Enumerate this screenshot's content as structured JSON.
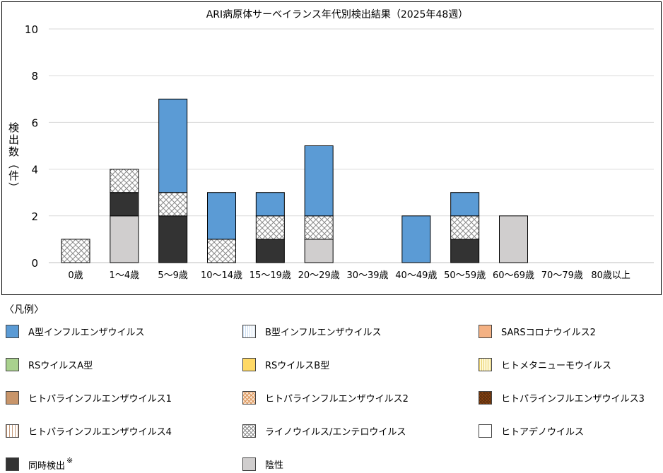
{
  "chart_data": {
    "type": "bar",
    "stacked": true,
    "title": "ARI病原体サーベイランス年代別検出結果（2025年48週）",
    "ylabel": "検出数（件）",
    "xlabel": "",
    "ylim": [
      0,
      10
    ],
    "yticks": [
      "0",
      "2",
      "4",
      "6",
      "8",
      "10"
    ],
    "grid": true,
    "categories": [
      "0歳",
      "1～4歳",
      "5～9歳",
      "10～14歳",
      "15～19歳",
      "20～29歳",
      "30～39歳",
      "40～49歳",
      "50～59歳",
      "60～69歳",
      "70～79歳",
      "80歳以上"
    ],
    "series": [
      {
        "name": "陰性",
        "color": "#d0cece",
        "pattern": "solid",
        "values": [
          0,
          2,
          0,
          0,
          0,
          1,
          0,
          0,
          0,
          2,
          0,
          0
        ]
      },
      {
        "name": "同時検出",
        "color": "#333333",
        "pattern": "solid",
        "values": [
          0,
          1,
          2,
          0,
          1,
          0,
          0,
          0,
          1,
          0,
          0,
          0
        ]
      },
      {
        "name": "ライノウイルス/エンテロウイルス",
        "color": "#8a8a8a",
        "pattern": "check",
        "values": [
          1,
          1,
          1,
          1,
          1,
          1,
          0,
          0,
          1,
          0,
          0,
          0
        ]
      },
      {
        "name": "A型インフルエンザウイルス",
        "color": "#5b9bd5",
        "pattern": "solid",
        "values": [
          0,
          0,
          4,
          2,
          1,
          3,
          0,
          2,
          1,
          0,
          0,
          0
        ]
      }
    ]
  },
  "legend": {
    "heading": "〈凡例〉",
    "items": [
      {
        "label": "A型インフルエンザウイルス",
        "swatch": "solid-blue"
      },
      {
        "label": "B型インフルエンザウイルス",
        "swatch": "vlines-blue"
      },
      {
        "label": "SARSコロナウイルス2",
        "swatch": "salmon"
      },
      {
        "label": "RSウイルスA型",
        "swatch": "green"
      },
      {
        "label": "RSウイルスB型",
        "swatch": "yellow"
      },
      {
        "label": "ヒトメタニューモウイルス",
        "swatch": "vlines-yellow"
      },
      {
        "label": "ヒトパラインフルエンザウイルス1",
        "swatch": "brown"
      },
      {
        "label": "ヒトパラインフルエンザウイルス2",
        "swatch": "check-orange"
      },
      {
        "label": "ヒトパラインフルエンザウイルス3",
        "swatch": "dark-brown"
      },
      {
        "label": "ヒトパラインフルエンザウイルス4",
        "swatch": "vlines-brown"
      },
      {
        "label": "ライノウイルス/エンテロウイルス",
        "swatch": "check-gray"
      },
      {
        "label": "ヒトアデノウイルス",
        "swatch": "white"
      },
      {
        "label": "同時検出",
        "swatch": "dark",
        "note": "※"
      },
      {
        "label": "陰性",
        "swatch": "lightgray"
      }
    ]
  }
}
